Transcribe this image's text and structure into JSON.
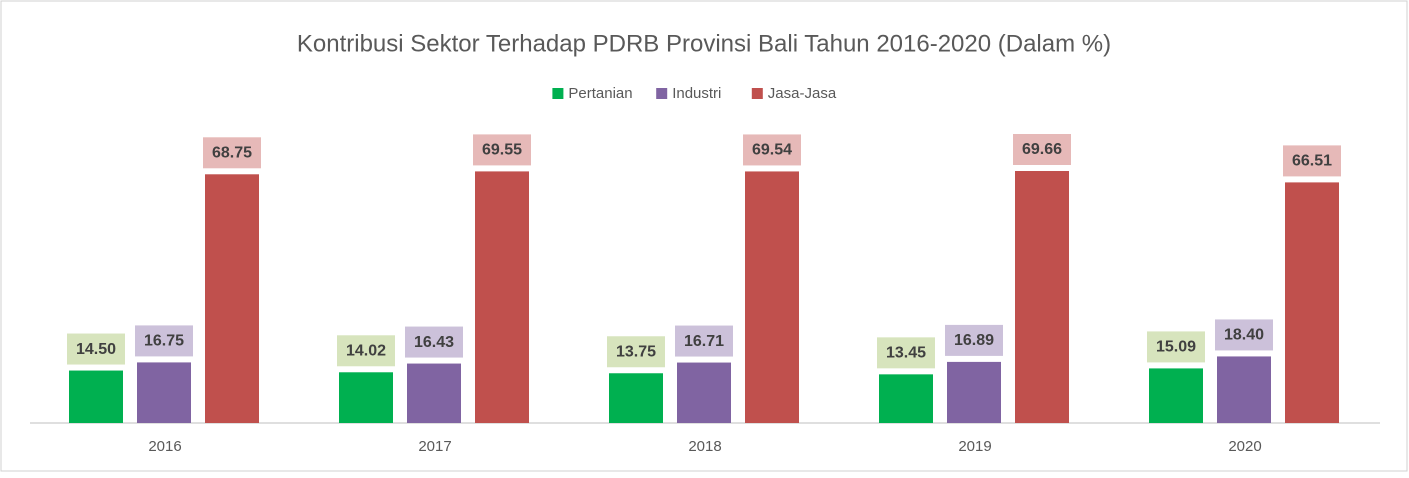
{
  "chart_data": {
    "type": "bar",
    "title": "Kontribusi Sektor Terhadap PDRB Provinsi Bali Tahun 2016-2020 (Dalam %)",
    "categories": [
      "2016",
      "2017",
      "2018",
      "2019",
      "2020"
    ],
    "series": [
      {
        "name": "Pertanian",
        "color": "#00b050",
        "label_color": "#d7e4bd",
        "values": [
          14.5,
          14.02,
          13.75,
          13.45,
          15.09
        ],
        "value_labels": [
          "14.50",
          "14.02",
          "13.75",
          "13.45",
          "15.09"
        ]
      },
      {
        "name": "Industri",
        "color": "#8064a2",
        "label_color": "#ccc1da",
        "values": [
          16.75,
          16.43,
          16.71,
          16.89,
          18.4
        ],
        "value_labels": [
          "16.75",
          "16.43",
          "16.71",
          "16.89",
          "18.40"
        ]
      },
      {
        "name": "Jasa-Jasa",
        "color": "#c0504d",
        "label_color": "#e6b9b8",
        "values": [
          68.75,
          69.55,
          69.54,
          69.66,
          66.51
        ],
        "value_labels": [
          "68.75",
          "69.55",
          "69.54",
          "69.66",
          "66.51"
        ]
      }
    ],
    "legend": "top"
  }
}
